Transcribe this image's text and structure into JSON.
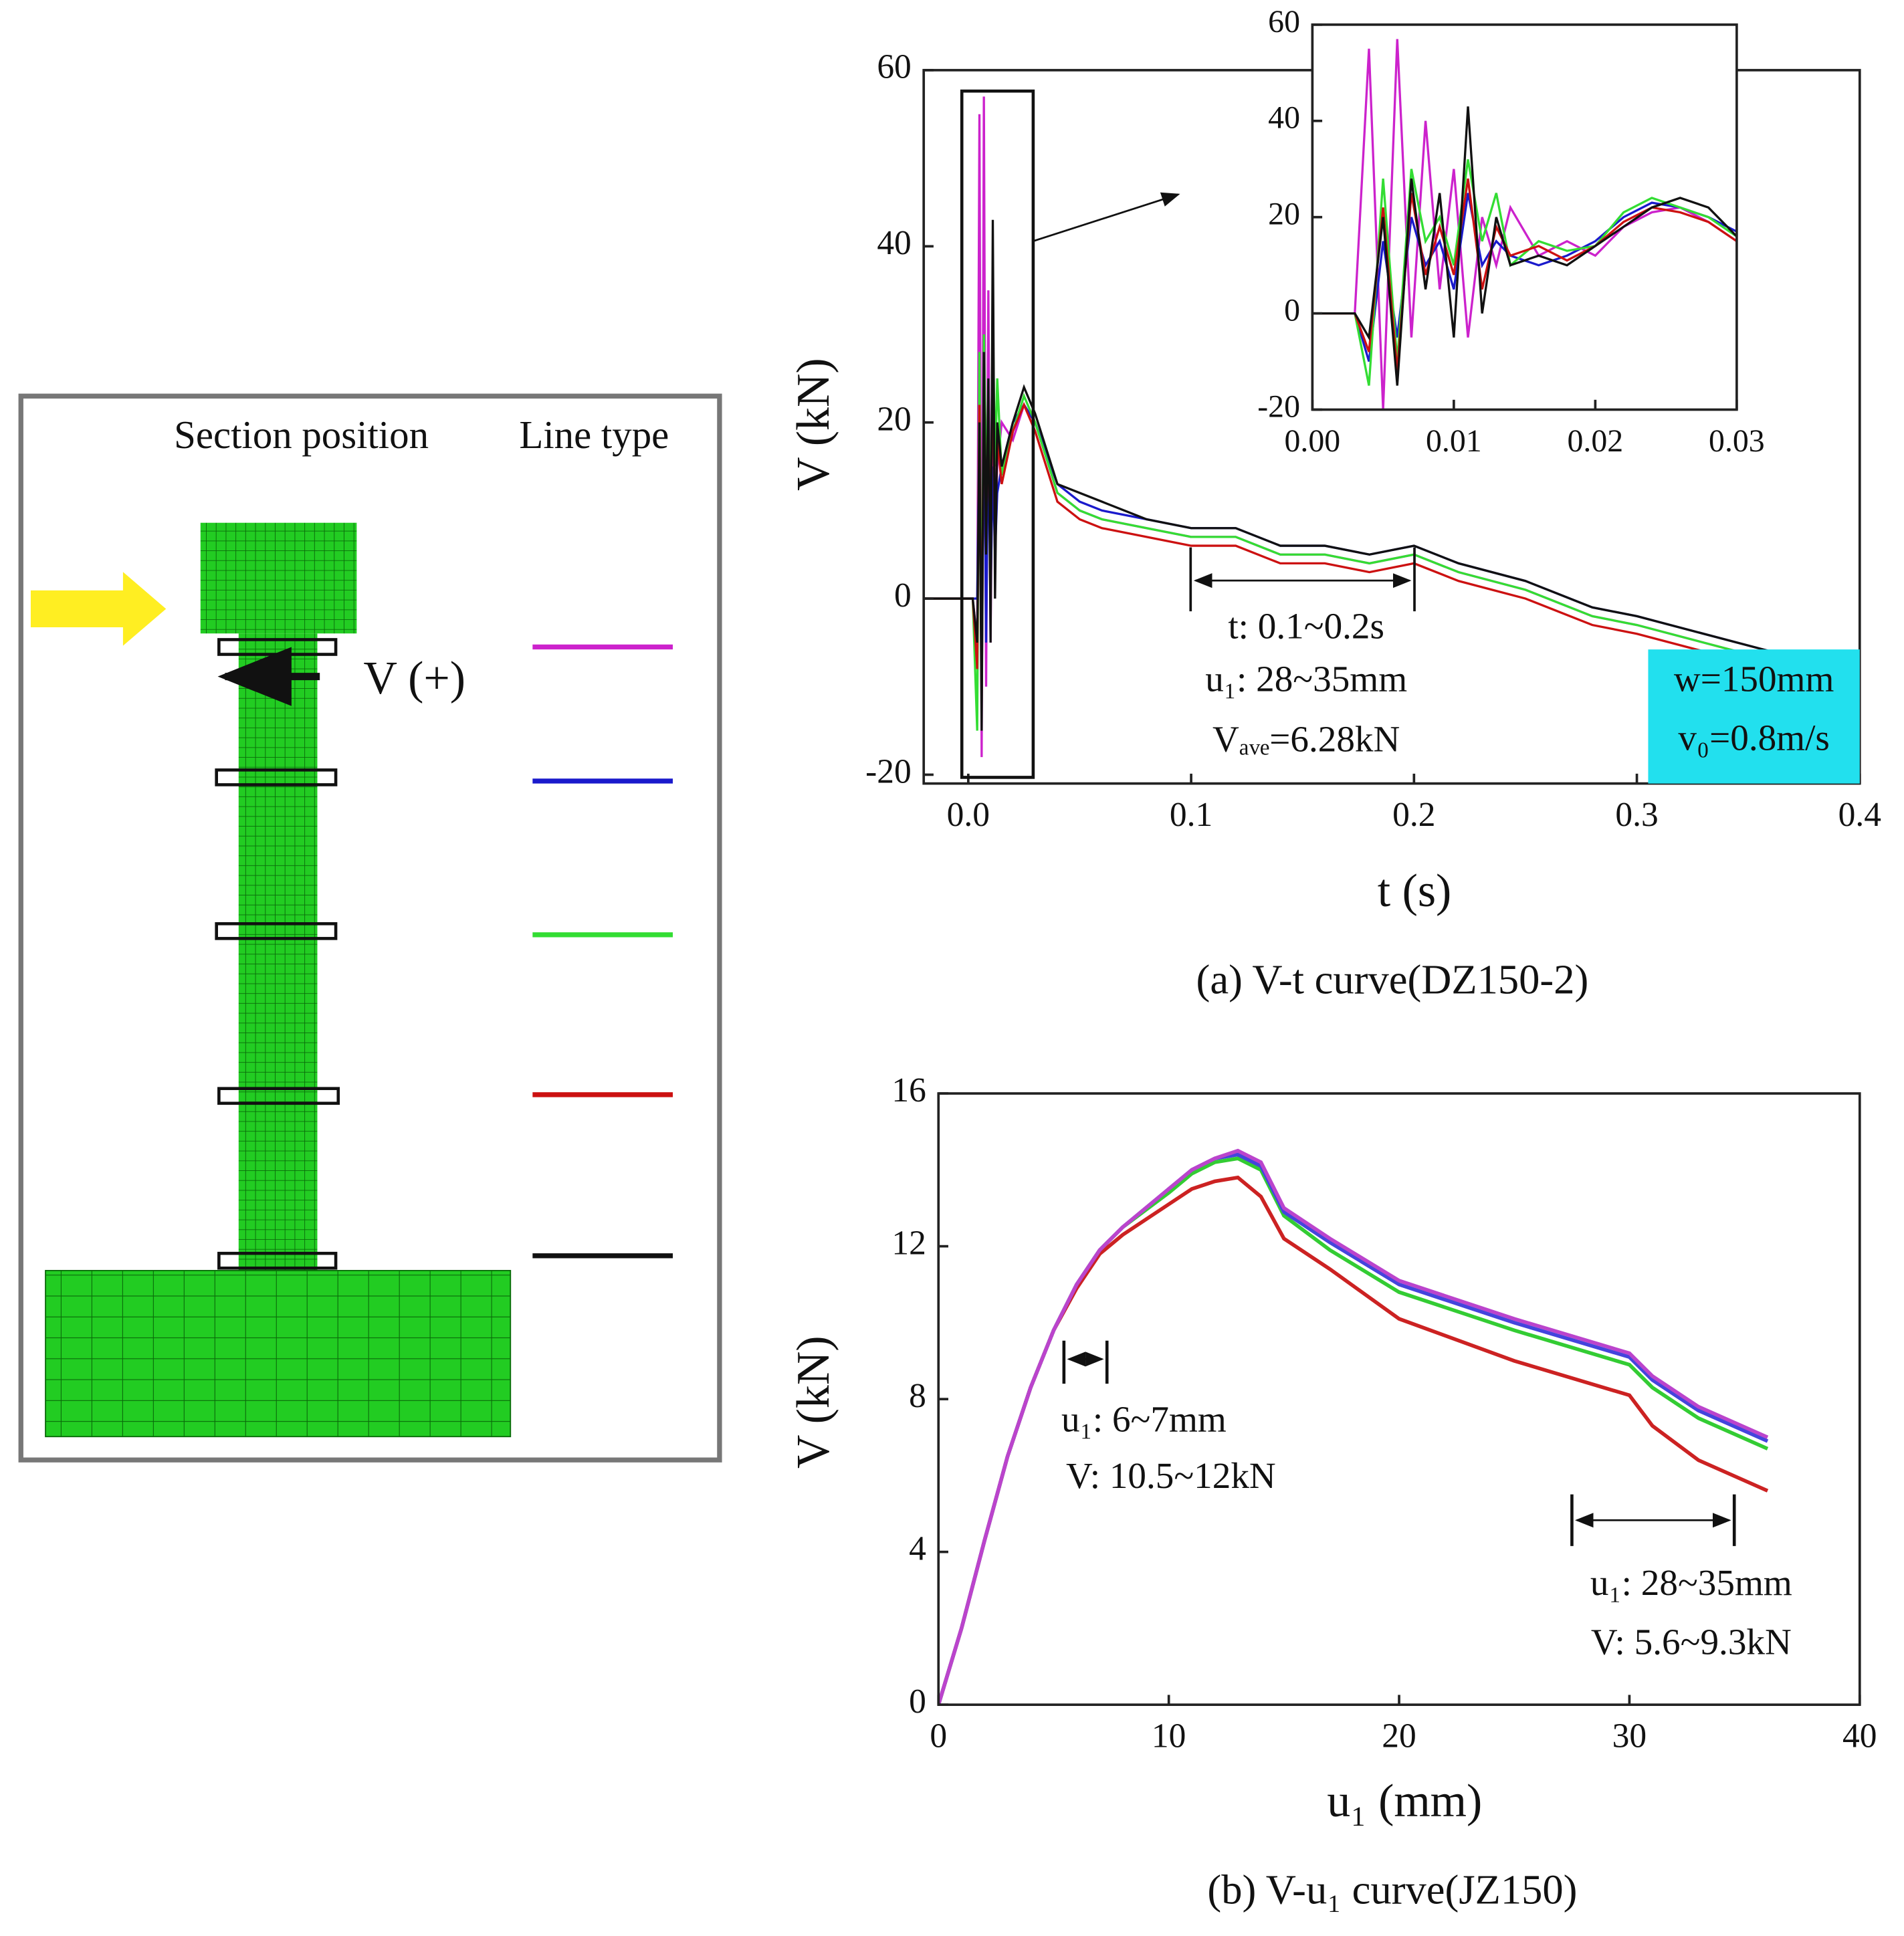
{
  "diagram": {
    "heading_position": "Section position",
    "heading_line": "Line type",
    "force_label": "V (+)"
  },
  "chart_data": [
    {
      "type": "line",
      "title": "(a) V-t curve(DZ150-2)",
      "xlabel": "t (s)",
      "ylabel": "V (kN)",
      "x": [
        -0.02,
        0.002,
        0.004,
        0.005,
        0.006,
        0.007,
        0.008,
        0.009,
        0.01,
        0.011,
        0.012,
        0.013,
        0.015,
        0.02,
        0.025,
        0.03,
        0.04,
        0.05,
        0.06,
        0.08,
        0.1,
        0.12,
        0.14,
        0.16,
        0.18,
        0.2,
        0.22,
        0.25,
        0.28,
        0.3,
        0.33,
        0.36
      ],
      "series": [
        {
          "color": "#cc22cc",
          "values": [
            0,
            0,
            -5,
            55,
            -18,
            57,
            -10,
            35,
            -5,
            25,
            8,
            15,
            20,
            18,
            22,
            20,
            12,
            10,
            9,
            8,
            7,
            7,
            5,
            5,
            4,
            5,
            3,
            1,
            -2,
            -3,
            -5,
            -7
          ]
        },
        {
          "color": "#1a1acc",
          "values": [
            0,
            0,
            0,
            20,
            -10,
            25,
            -5,
            20,
            0,
            15,
            5,
            12,
            15,
            20,
            22,
            20,
            13,
            11,
            10,
            9,
            8,
            8,
            6,
            6,
            5,
            6,
            4,
            2,
            -1,
            -2,
            -4,
            -6
          ]
        },
        {
          "color": "#33dd33",
          "values": [
            0,
            0,
            -15,
            28,
            -10,
            30,
            15,
            20,
            10,
            32,
            15,
            25,
            14,
            19,
            23,
            20,
            12,
            10,
            9,
            8,
            7,
            7,
            5,
            5,
            4,
            5,
            3,
            1,
            -2,
            -3,
            -5,
            -7
          ]
        },
        {
          "color": "#cc1111",
          "values": [
            0,
            0,
            -8,
            22,
            -12,
            25,
            8,
            18,
            8,
            28,
            5,
            18,
            13,
            19,
            22,
            19,
            11,
            9,
            8,
            7,
            6,
            6,
            4,
            4,
            3,
            4,
            2,
            0,
            -3,
            -4,
            -6,
            -7
          ]
        },
        {
          "color": "#111111",
          "values": [
            0,
            0,
            -5,
            20,
            -15,
            28,
            5,
            25,
            -5,
            43,
            0,
            20,
            15,
            20,
            24,
            21,
            13,
            12,
            11,
            9,
            8,
            8,
            6,
            6,
            5,
            6,
            4,
            2,
            -1,
            -2,
            -4,
            -6
          ]
        }
      ],
      "xlim": [
        -0.02,
        0.4
      ],
      "ylim": [
        -21,
        60
      ],
      "xticks": [
        {
          "value": 0,
          "label": "0.0"
        },
        0.1,
        0.2,
        0.3,
        0.4
      ],
      "yticks": [
        -20,
        0,
        20,
        40,
        60
      ],
      "annotations": [
        "t: 0.1~0.2s",
        "u₁: 28~35mm",
        "Vₐᵥₑ=6.28kN",
        "w=150mm",
        "v₀=0.8m/s"
      ]
    },
    {
      "type": "line",
      "x": [
        0,
        0.003,
        0.004,
        0.005,
        0.006,
        0.007,
        0.008,
        0.009,
        0.01,
        0.011,
        0.012,
        0.013,
        0.014,
        0.016,
        0.018,
        0.02,
        0.022,
        0.024,
        0.026,
        0.028,
        0.03
      ],
      "series": [
        {
          "color": "#cc22cc",
          "values": [
            0,
            0,
            55,
            -20,
            57,
            -5,
            40,
            5,
            30,
            -5,
            20,
            10,
            22,
            12,
            15,
            12,
            18,
            21,
            22,
            19,
            15
          ]
        },
        {
          "color": "#1a1acc",
          "values": [
            0,
            0,
            -10,
            15,
            -5,
            20,
            10,
            15,
            5,
            25,
            10,
            15,
            12,
            10,
            12,
            15,
            20,
            23,
            22,
            20,
            17
          ]
        },
        {
          "color": "#33dd33",
          "values": [
            0,
            0,
            -15,
            28,
            -10,
            30,
            15,
            20,
            10,
            32,
            15,
            25,
            10,
            15,
            13,
            14,
            21,
            24,
            22,
            20,
            16
          ]
        },
        {
          "color": "#cc1111",
          "values": [
            0,
            0,
            -8,
            22,
            -12,
            25,
            8,
            18,
            8,
            28,
            5,
            18,
            12,
            14,
            11,
            14,
            19,
            22,
            21,
            19,
            15
          ]
        },
        {
          "color": "#111111",
          "values": [
            0,
            0,
            -5,
            20,
            -15,
            28,
            5,
            25,
            -5,
            43,
            0,
            20,
            10,
            12,
            10,
            14,
            18,
            22,
            24,
            22,
            16
          ]
        }
      ],
      "xlim": [
        0,
        0.03
      ],
      "ylim": [
        -20,
        60
      ],
      "xticks": [
        {
          "value": 0,
          "label": "0.00"
        },
        {
          "value": 0.01,
          "label": "0.01"
        },
        {
          "value": 0.02,
          "label": "0.02"
        },
        {
          "value": 0.03,
          "label": "0.03"
        }
      ],
      "yticks": [
        -20,
        0,
        20,
        40,
        60
      ]
    },
    {
      "type": "line",
      "title": "(b) V-u₁ curve(JZ150)",
      "xlabel": "u₁ (mm)",
      "ylabel": "V (kN)",
      "x": [
        0,
        1,
        2,
        3,
        4,
        5,
        6,
        7,
        8,
        10,
        11,
        12,
        13,
        14,
        15,
        17,
        20,
        25,
        30,
        31,
        33,
        36
      ],
      "series": [
        {
          "color": "#33cc33",
          "values": [
            0,
            2,
            4.3,
            6.5,
            8.3,
            9.8,
            11,
            11.9,
            12.5,
            13.4,
            13.9,
            14.2,
            14.3,
            14.0,
            12.8,
            11.9,
            10.8,
            9.8,
            8.9,
            8.3,
            7.5,
            6.7
          ]
        },
        {
          "color": "#cc2222",
          "values": [
            0,
            2,
            4.3,
            6.5,
            8.3,
            9.8,
            10.9,
            11.8,
            12.3,
            13.1,
            13.5,
            13.7,
            13.8,
            13.3,
            12.2,
            11.4,
            10.1,
            9.0,
            8.1,
            7.3,
            6.4,
            5.6
          ]
        },
        {
          "color": "#4444dd",
          "values": [
            0,
            2,
            4.3,
            6.5,
            8.3,
            9.8,
            11,
            11.9,
            12.5,
            13.5,
            14,
            14.3,
            14.4,
            14.1,
            12.9,
            12.1,
            11.0,
            10.0,
            9.1,
            8.5,
            7.7,
            6.9
          ]
        },
        {
          "color": "#bb44cc",
          "values": [
            0,
            2,
            4.3,
            6.5,
            8.3,
            9.8,
            11,
            11.9,
            12.5,
            13.5,
            14,
            14.3,
            14.5,
            14.2,
            13,
            12.2,
            11.1,
            10.1,
            9.2,
            8.6,
            7.8,
            7.0
          ]
        }
      ],
      "xlim": [
        0,
        40
      ],
      "ylim": [
        0,
        16
      ],
      "xticks": [
        0,
        10,
        20,
        30,
        40
      ],
      "yticks": [
        0,
        4,
        8,
        12,
        16
      ],
      "annotations": [
        "u₁: 6~7mm",
        "V: 10.5~12kN",
        "u₁: 28~35mm",
        "V: 5.6~9.3kN"
      ]
    }
  ]
}
